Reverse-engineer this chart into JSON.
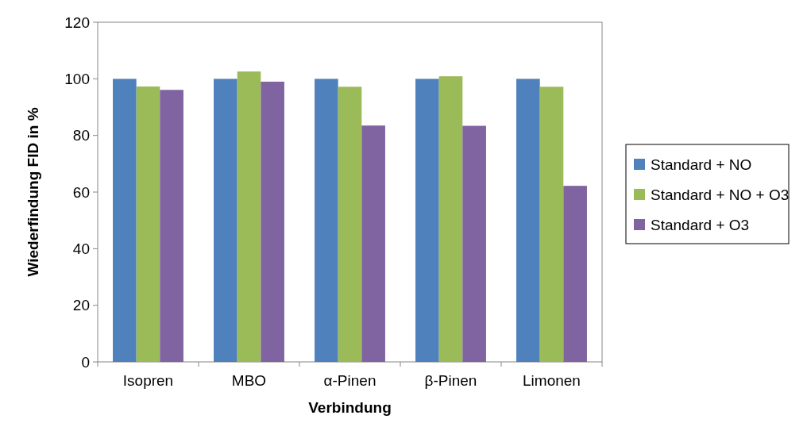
{
  "chart_data": {
    "type": "bar",
    "xlabel": "Verbindung",
    "ylabel": "Wiederfindung FID in %",
    "categories": [
      "Isopren",
      "MBO",
      "α-Pinen",
      "β-Pinen",
      "Limonen"
    ],
    "series": [
      {
        "name": "Standard + NO",
        "color": "#4f81bd",
        "values": [
          100,
          100,
          100,
          100,
          100
        ]
      },
      {
        "name": "Standard + NO + O3",
        "color": "#9bbb59",
        "values": [
          97.3,
          102.6,
          97.2,
          100.9,
          97.2
        ]
      },
      {
        "name": "Standard + O3",
        "color": "#8064a2",
        "values": [
          96.1,
          99,
          83.5,
          83.4,
          62.2
        ]
      }
    ],
    "ylim": [
      0,
      120
    ],
    "yticks": [
      0,
      20,
      40,
      60,
      80,
      100,
      120
    ],
    "grid": false,
    "legend": "right"
  }
}
